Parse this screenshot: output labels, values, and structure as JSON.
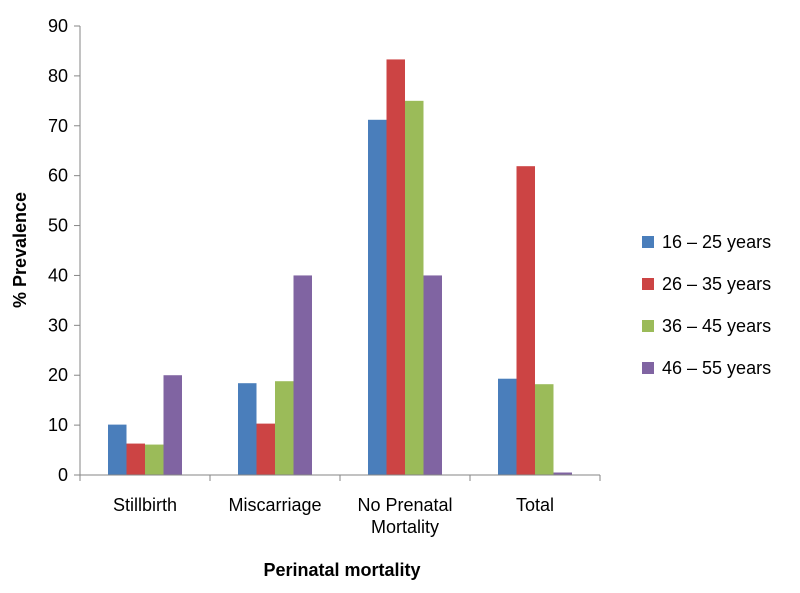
{
  "chart_data": {
    "type": "bar",
    "categories": [
      [
        "Stillbirth"
      ],
      [
        "Miscarriage"
      ],
      [
        "No Prenatal",
        "Mortality"
      ],
      [
        "Total"
      ]
    ],
    "series": [
      {
        "name": "16 – 25 years",
        "color": "#4a7ebb",
        "values": [
          10.1,
          18.4,
          71.2,
          19.3
        ]
      },
      {
        "name": "26 – 35 years",
        "color": "#cc4444",
        "values": [
          6.3,
          10.3,
          83.3,
          61.9
        ]
      },
      {
        "name": "36 – 45 years",
        "color": "#9bbb59",
        "values": [
          6.1,
          18.8,
          75.0,
          18.2
        ]
      },
      {
        "name": "46 – 55 years",
        "color": "#8064a2",
        "values": [
          20.0,
          40.0,
          40.0,
          0.5
        ]
      }
    ],
    "xlabel": "Perinatal mortality",
    "ylabel": "% Prevalence",
    "ylim": [
      0,
      90
    ],
    "yticks": [
      0,
      10,
      20,
      30,
      40,
      50,
      60,
      70,
      80,
      90
    ],
    "grid": false,
    "legend_position": "right"
  }
}
